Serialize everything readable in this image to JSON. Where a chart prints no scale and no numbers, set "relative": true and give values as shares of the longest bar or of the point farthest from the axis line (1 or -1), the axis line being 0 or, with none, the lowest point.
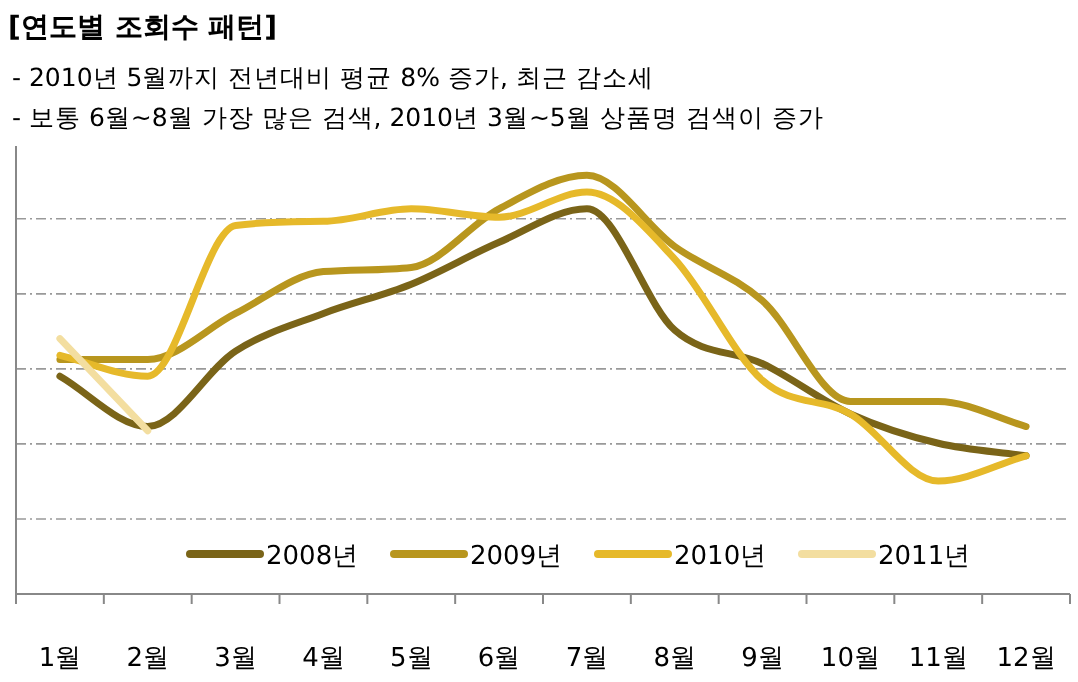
{
  "chart_data": {
    "type": "line",
    "title": "[연도별 조회수 패턴]",
    "annotations": [
      "- 2010년 5월까지 전년대비 평균 8% 증가, 최근 감소세",
      "- 보통 6월~8월 가장 많은 검색, 2010년 3월~5월 상품명 검색이 증가"
    ],
    "categories": [
      "1월",
      "2월",
      "3월",
      "4월",
      "5월",
      "6월",
      "7월",
      "8월",
      "9월",
      "10월",
      "11월",
      "12월"
    ],
    "relative": true,
    "grid": "y",
    "legend": "bottom",
    "marker": "none",
    "line_style": "solid",
    "series": [
      {
        "name": "2008년",
        "color": "#7a6418",
        "values": [
          0.52,
          0.4,
          0.58,
          0.67,
          0.74,
          0.84,
          0.92,
          0.63,
          0.55,
          0.43,
          0.36,
          0.33
        ]
      },
      {
        "name": "2009년",
        "color": "#b8961e",
        "values": [
          0.56,
          0.56,
          0.67,
          0.77,
          0.78,
          0.92,
          1,
          0.83,
          0.7,
          0.46,
          0.46,
          0.4
        ]
      },
      {
        "name": "2010년",
        "color": "#e6b92a",
        "values": [
          0.57,
          0.52,
          0.88,
          0.89,
          0.92,
          0.9,
          0.96,
          0.8,
          0.51,
          0.43,
          0.27,
          0.33
        ]
      },
      {
        "name": "2011년",
        "color": "#f3dea0",
        "values": [
          0.61,
          0.39,
          null,
          null,
          null,
          null,
          null,
          null,
          null,
          null,
          null,
          null
        ]
      }
    ]
  }
}
